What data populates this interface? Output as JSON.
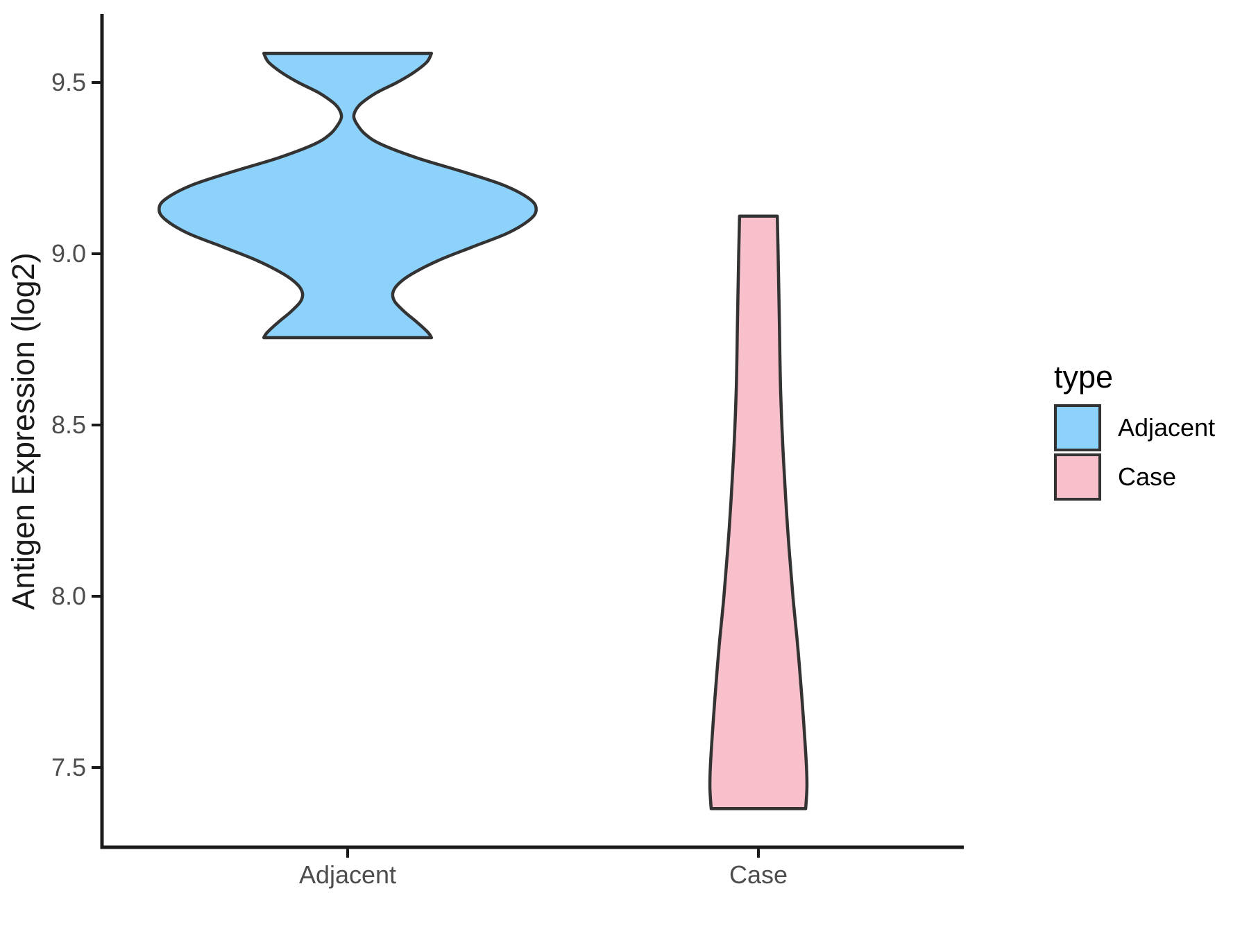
{
  "figure": {
    "background": "#FFFFFF",
    "axis_color": "#1a1a1a",
    "tick_label_color": "#4d4d4d"
  },
  "chart_data": {
    "type": "violin",
    "title": "",
    "xlabel": "",
    "ylabel": "Antigen Expression (log2)",
    "categories": [
      "Adjacent",
      "Case"
    ],
    "y_ticks": [
      "9.5",
      "9.0",
      "8.5",
      "8.0",
      "7.5"
    ],
    "y_axis_range_shown": [
      7.27,
      9.69
    ],
    "grid": "off",
    "legend": {
      "title": "type",
      "position": "right",
      "entries": [
        {
          "label": "Adjacent",
          "color": "#8DD2FA"
        },
        {
          "label": "Case",
          "color": "#F8C0CB"
        }
      ]
    },
    "series": [
      {
        "name": "Adjacent",
        "category_index": 0,
        "fill": "#8DD2FA",
        "outline": "#333333",
        "value_min": 8.755,
        "value_max": 9.585,
        "profile_value_halfwidth": [
          [
            9.585,
            0.204
          ],
          [
            9.56,
            0.193
          ],
          [
            9.53,
            0.162
          ],
          [
            9.5,
            0.12
          ],
          [
            9.47,
            0.07
          ],
          [
            9.44,
            0.034
          ],
          [
            9.42,
            0.02
          ],
          [
            9.4,
            0.015
          ],
          [
            9.38,
            0.022
          ],
          [
            9.35,
            0.042
          ],
          [
            9.32,
            0.081
          ],
          [
            9.28,
            0.169
          ],
          [
            9.24,
            0.279
          ],
          [
            9.2,
            0.38
          ],
          [
            9.16,
            0.443
          ],
          [
            9.13,
            0.459
          ],
          [
            9.1,
            0.444
          ],
          [
            9.06,
            0.389
          ],
          [
            9.02,
            0.304
          ],
          [
            8.98,
            0.22
          ],
          [
            8.94,
            0.155
          ],
          [
            8.91,
            0.122
          ],
          [
            8.885,
            0.11
          ],
          [
            8.86,
            0.115
          ],
          [
            8.83,
            0.139
          ],
          [
            8.8,
            0.169
          ],
          [
            8.77,
            0.196
          ],
          [
            8.755,
            0.204
          ]
        ]
      },
      {
        "name": "Case",
        "category_index": 1,
        "fill": "#F8C0CB",
        "outline": "#333333",
        "value_min": 7.38,
        "value_max": 9.11,
        "profile_value_halfwidth": [
          [
            9.11,
            0.046
          ],
          [
            9.0,
            0.048
          ],
          [
            8.8,
            0.051
          ],
          [
            8.6,
            0.054
          ],
          [
            8.4,
            0.061
          ],
          [
            8.2,
            0.071
          ],
          [
            8.0,
            0.084
          ],
          [
            7.85,
            0.096
          ],
          [
            7.7,
            0.106
          ],
          [
            7.6,
            0.112
          ],
          [
            7.5,
            0.117
          ],
          [
            7.44,
            0.118
          ],
          [
            7.38,
            0.115
          ]
        ]
      }
    ]
  }
}
